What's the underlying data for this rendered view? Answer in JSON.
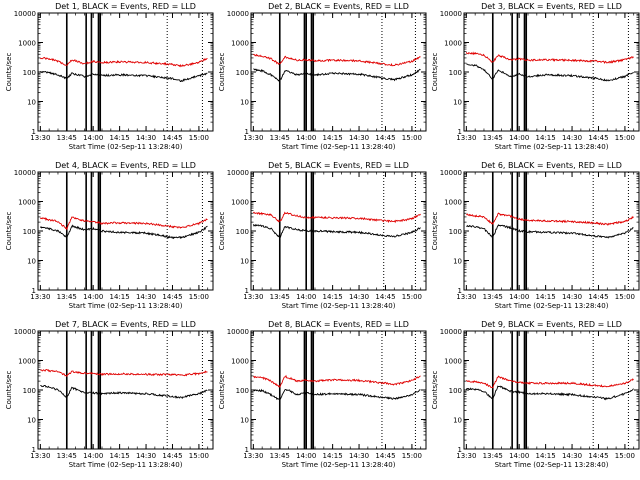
{
  "colors": {
    "events": "#000000",
    "lld": "#e00000",
    "axes": "#000000",
    "background": "#ffffff"
  },
  "shared": {
    "xlabel": "Start Time (02-Sep-11 13:28:40)",
    "ylabel": "Counts/sec",
    "x_ticks": [
      "13:30",
      "13:45",
      "14:00",
      "14:15",
      "14:30",
      "14:45",
      "15:00"
    ],
    "y_ticks": [
      "1",
      "10",
      "100",
      "1000",
      "10000"
    ],
    "y_scale": "log",
    "xlim": [
      "13:28:40",
      "15:08"
    ],
    "ylim": [
      1,
      10000
    ]
  },
  "chart_data": [
    {
      "type": "line",
      "title": "Det 1, BLACK = Events, RED = LLD",
      "series": [
        {
          "name": "Events",
          "x": [
            "13:30",
            "13:35",
            "13:40",
            "13:45",
            "13:48",
            "13:55",
            "14:00",
            "14:05",
            "14:15",
            "14:30",
            "14:45",
            "14:50",
            "15:00",
            "15:05"
          ],
          "values": [
            100,
            95,
            80,
            60,
            90,
            70,
            85,
            75,
            80,
            75,
            60,
            50,
            75,
            90
          ]
        },
        {
          "name": "LLD",
          "x": [
            "13:30",
            "13:35",
            "13:40",
            "13:45",
            "13:48",
            "13:55",
            "14:00",
            "14:05",
            "14:15",
            "14:30",
            "14:45",
            "14:50",
            "15:00",
            "15:05"
          ],
          "values": [
            300,
            280,
            230,
            170,
            260,
            190,
            230,
            210,
            220,
            210,
            180,
            160,
            210,
            300
          ]
        }
      ],
      "markers": {
        "solid": [
          "13:45",
          "13:56",
          "13:59",
          "14:03",
          "14:04"
        ],
        "dotted": [
          "14:42",
          "15:02"
        ]
      }
    },
    {
      "type": "line",
      "title": "Det 2, BLACK = Events, RED = LLD",
      "series": [
        {
          "name": "Events",
          "x": [
            "13:30",
            "13:35",
            "13:40",
            "13:45",
            "13:48",
            "13:55",
            "14:00",
            "14:05",
            "14:15",
            "14:30",
            "14:45",
            "14:50",
            "15:00",
            "15:05"
          ],
          "values": [
            120,
            110,
            80,
            50,
            110,
            80,
            90,
            80,
            90,
            85,
            60,
            55,
            80,
            120
          ]
        },
        {
          "name": "LLD",
          "x": [
            "13:30",
            "13:35",
            "13:40",
            "13:45",
            "13:48",
            "13:55",
            "14:00",
            "14:05",
            "14:15",
            "14:30",
            "14:45",
            "14:50",
            "15:00",
            "15:05"
          ],
          "values": [
            380,
            350,
            280,
            180,
            320,
            250,
            260,
            240,
            250,
            240,
            180,
            170,
            230,
            330
          ]
        }
      ],
      "markers": {
        "solid": [
          "13:45",
          "13:59",
          "14:00",
          "14:03",
          "14:04"
        ],
        "dotted": [
          "14:43",
          "15:02"
        ]
      }
    },
    {
      "type": "line",
      "title": "Det 3, BLACK = Events, RED = LLD",
      "series": [
        {
          "name": "Events",
          "x": [
            "13:30",
            "13:35",
            "13:40",
            "13:45",
            "13:48",
            "13:55",
            "14:00",
            "14:05",
            "14:15",
            "14:30",
            "14:45",
            "14:50",
            "15:00",
            "15:05"
          ],
          "values": [
            180,
            170,
            120,
            55,
            120,
            70,
            85,
            70,
            80,
            75,
            60,
            50,
            70,
            100
          ]
        },
        {
          "name": "LLD",
          "x": [
            "13:30",
            "13:35",
            "13:40",
            "13:45",
            "13:48",
            "13:55",
            "14:00",
            "14:05",
            "14:15",
            "14:30",
            "14:45",
            "14:50",
            "15:00",
            "15:05"
          ],
          "values": [
            450,
            420,
            380,
            210,
            370,
            260,
            280,
            250,
            260,
            250,
            230,
            210,
            260,
            330
          ]
        }
      ],
      "markers": {
        "solid": [
          "13:45",
          "13:56",
          "13:59",
          "14:03",
          "14:04"
        ],
        "dotted": [
          "14:42",
          "15:02"
        ]
      }
    },
    {
      "type": "line",
      "title": "Det 4, BLACK = Events, RED = LLD",
      "series": [
        {
          "name": "Events",
          "x": [
            "13:30",
            "13:35",
            "13:40",
            "13:45",
            "13:48",
            "13:55",
            "14:00",
            "14:05",
            "14:15",
            "14:30",
            "14:45",
            "14:50",
            "15:00",
            "15:05"
          ],
          "values": [
            130,
            120,
            100,
            60,
            150,
            110,
            120,
            100,
            90,
            85,
            60,
            60,
            90,
            140
          ]
        },
        {
          "name": "LLD",
          "x": [
            "13:30",
            "13:35",
            "13:40",
            "13:45",
            "13:48",
            "13:55",
            "14:00",
            "14:05",
            "14:15",
            "14:30",
            "14:45",
            "14:50",
            "15:00",
            "15:05"
          ],
          "values": [
            280,
            240,
            210,
            120,
            300,
            220,
            210,
            180,
            190,
            180,
            140,
            130,
            180,
            260
          ]
        }
      ],
      "markers": {
        "solid": [
          "13:45",
          "13:56",
          "13:59",
          "14:03",
          "14:04"
        ],
        "dotted": [
          "14:42",
          "15:02"
        ]
      }
    },
    {
      "type": "line",
      "title": "Det 5, BLACK = Events, RED = LLD",
      "series": [
        {
          "name": "Events",
          "x": [
            "13:30",
            "13:35",
            "13:40",
            "13:45",
            "13:48",
            "13:55",
            "14:00",
            "14:05",
            "14:15",
            "14:30",
            "14:45",
            "14:50",
            "15:00",
            "15:05"
          ],
          "values": [
            160,
            150,
            120,
            60,
            140,
            110,
            100,
            100,
            95,
            90,
            70,
            65,
            90,
            130
          ]
        },
        {
          "name": "LLD",
          "x": [
            "13:30",
            "13:35",
            "13:40",
            "13:45",
            "13:48",
            "13:55",
            "14:00",
            "14:05",
            "14:15",
            "14:30",
            "14:45",
            "14:50",
            "15:00",
            "15:05"
          ],
          "values": [
            430,
            380,
            350,
            200,
            420,
            320,
            290,
            290,
            280,
            270,
            220,
            210,
            260,
            380
          ]
        }
      ],
      "markers": {
        "solid": [
          "13:45",
          "14:00",
          "14:03",
          "14:04"
        ],
        "dotted": [
          "14:44",
          "15:02"
        ]
      }
    },
    {
      "type": "line",
      "title": "Det 6, BLACK = Events, RED = LLD",
      "series": [
        {
          "name": "Events",
          "x": [
            "13:30",
            "13:35",
            "13:40",
            "13:45",
            "13:48",
            "13:55",
            "14:00",
            "14:05",
            "14:15",
            "14:30",
            "14:45",
            "14:50",
            "15:00",
            "15:05"
          ],
          "values": [
            150,
            140,
            120,
            60,
            160,
            130,
            100,
            95,
            90,
            85,
            65,
            60,
            85,
            130
          ]
        },
        {
          "name": "LLD",
          "x": [
            "13:30",
            "13:35",
            "13:40",
            "13:45",
            "13:48",
            "13:55",
            "14:00",
            "14:05",
            "14:15",
            "14:30",
            "14:45",
            "14:50",
            "15:00",
            "15:05"
          ],
          "values": [
            360,
            320,
            300,
            170,
            380,
            320,
            250,
            230,
            220,
            210,
            180,
            170,
            210,
            300
          ]
        }
      ],
      "markers": {
        "solid": [
          "13:45",
          "13:56",
          "13:59",
          "14:03",
          "14:04"
        ],
        "dotted": [
          "14:42",
          "15:02"
        ]
      }
    },
    {
      "type": "line",
      "title": "Det 7, BLACK = Events, RED = LLD",
      "series": [
        {
          "name": "Events",
          "x": [
            "13:30",
            "13:35",
            "13:40",
            "13:45",
            "13:48",
            "13:55",
            "14:00",
            "14:05",
            "14:15",
            "14:30",
            "14:45",
            "14:50",
            "15:00",
            "15:05"
          ],
          "values": [
            140,
            130,
            100,
            55,
            120,
            80,
            80,
            75,
            80,
            75,
            60,
            55,
            75,
            100
          ]
        },
        {
          "name": "LLD",
          "x": [
            "13:30",
            "13:35",
            "13:40",
            "13:45",
            "13:48",
            "13:55",
            "14:00",
            "14:05",
            "14:15",
            "14:30",
            "14:45",
            "14:50",
            "15:00",
            "15:05"
          ],
          "values": [
            480,
            450,
            420,
            300,
            420,
            370,
            360,
            340,
            350,
            340,
            330,
            320,
            360,
            420
          ]
        }
      ],
      "markers": {
        "solid": [
          "13:45",
          "13:56",
          "13:59",
          "14:03",
          "14:04"
        ],
        "dotted": [
          "14:42",
          "15:02"
        ]
      }
    },
    {
      "type": "line",
      "title": "Det 8, BLACK = Events, RED = LLD",
      "series": [
        {
          "name": "Events",
          "x": [
            "13:30",
            "13:35",
            "13:40",
            "13:45",
            "13:48",
            "13:55",
            "14:00",
            "14:05",
            "14:15",
            "14:30",
            "14:45",
            "14:50",
            "15:00",
            "15:05"
          ],
          "values": [
            100,
            95,
            70,
            45,
            110,
            70,
            80,
            70,
            75,
            70,
            55,
            50,
            70,
            100
          ]
        },
        {
          "name": "LLD",
          "x": [
            "13:30",
            "13:35",
            "13:40",
            "13:45",
            "13:48",
            "13:55",
            "14:00",
            "14:05",
            "14:10",
            "14:15",
            "14:30",
            "14:45",
            "14:50",
            "15:00",
            "15:05"
          ],
          "values": [
            280,
            260,
            200,
            130,
            290,
            200,
            220,
            200,
            210,
            220,
            210,
            170,
            150,
            210,
            300
          ]
        }
      ],
      "markers": {
        "solid": [
          "13:45",
          "13:59",
          "14:00",
          "14:03",
          "14:04"
        ],
        "dotted": [
          "14:43",
          "15:02"
        ]
      }
    },
    {
      "type": "line",
      "title": "Det 9, BLACK = Events, RED = LLD",
      "series": [
        {
          "name": "Events",
          "x": [
            "13:30",
            "13:35",
            "13:40",
            "13:45",
            "13:48",
            "13:55",
            "14:00",
            "14:05",
            "14:15",
            "14:30",
            "14:45",
            "14:50",
            "15:00",
            "15:05"
          ],
          "values": [
            110,
            105,
            90,
            50,
            140,
            90,
            85,
            75,
            75,
            70,
            55,
            50,
            75,
            110
          ]
        },
        {
          "name": "LLD",
          "x": [
            "13:30",
            "13:35",
            "13:40",
            "13:45",
            "13:48",
            "13:55",
            "14:00",
            "14:05",
            "14:15",
            "14:30",
            "14:45",
            "14:50",
            "15:00",
            "15:05"
          ],
          "values": [
            200,
            190,
            170,
            120,
            290,
            200,
            180,
            170,
            170,
            170,
            140,
            130,
            170,
            230
          ]
        }
      ],
      "markers": {
        "solid": [
          "13:45",
          "13:56",
          "13:59",
          "14:03",
          "14:04"
        ],
        "dotted": [
          "14:42",
          "15:02"
        ]
      }
    }
  ]
}
